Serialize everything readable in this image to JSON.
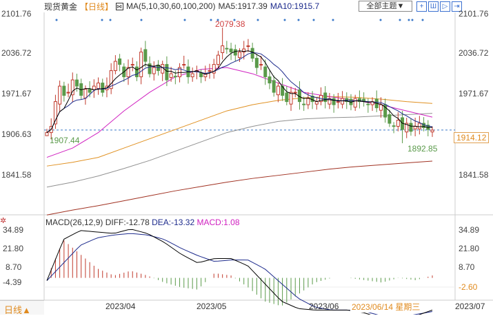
{
  "header": {
    "symbol": "现货黄金",
    "period": "【日线】",
    "ma_label": "MA(5,10,30,60,100,200)",
    "ma5": "MA5:1917.39",
    "ma10": "MA10:1915.7",
    "theme_button": "全部主题▼"
  },
  "tools": [
    "+",
    "Ш",
    "▷",
    "⇥"
  ],
  "price_axis": [
    "2101.76",
    "2036.72",
    "1971.67",
    "1906.63",
    "1841.58"
  ],
  "annotations": {
    "high": "2079.38",
    "low_left": "1907.44",
    "low_right": "1892.85",
    "current": "1914.12"
  },
  "macd": {
    "label": "MACD(26,12,9)",
    "diff": "DIFF:-12.78",
    "dea": "DEA:-13.32",
    "macd": "MACD:1.08",
    "axis": [
      "34.89",
      "21.80",
      "8.70",
      "-4.39"
    ],
    "cursor_value": "-2.60"
  },
  "dates": [
    "2023/04",
    "2023/05",
    "2023/06",
    "2023/07"
  ],
  "tooltip_date": "2023/06/14 星期三",
  "period_button": "日线▲",
  "colors": {
    "up": "#c0392b",
    "down": "#5a9a4a",
    "ma5": "#000000",
    "ma10": "#1c2a8c",
    "ma30": "#d020c0",
    "ma60": "#e09020",
    "ma100": "#909090",
    "ma200": "#a03020"
  },
  "chart_data": {
    "type": "candlestick",
    "ylim": [
      1776,
      2105
    ],
    "closes": [
      1910,
      1920,
      1960,
      1985,
      1970,
      1975,
      1995,
      1985,
      1970,
      1980,
      1975,
      1985,
      1990,
      1975,
      1985,
      2010,
      2025,
      2020,
      2000,
      2015,
      2020,
      2000,
      2040,
      2025,
      2005,
      2015,
      2010,
      2020,
      1995,
      2005,
      2000,
      2015,
      2020,
      2000,
      2005,
      2010,
      2000,
      2005,
      2010,
      2020,
      2035,
      2050,
      2045,
      2040,
      2035,
      2040,
      2045,
      2050,
      2030,
      2015,
      2020,
      2000,
      1990,
      1975,
      1985,
      1970,
      1960,
      1975,
      1975,
      1960,
      1955,
      1965,
      1960,
      1960,
      1970,
      1960,
      1965,
      1955,
      1960,
      1965,
      1960,
      1955,
      1965,
      1960,
      1960,
      1955,
      1960,
      1950,
      1955,
      1935,
      1925,
      1920,
      1930,
      1915,
      1925,
      1912,
      1920,
      1925,
      1918,
      1915,
      1914
    ],
    "ma30": [
      1870,
      1885,
      1910,
      1945,
      1975,
      2000,
      2012,
      2015,
      2005,
      1990,
      1975,
      1968,
      1962,
      1955,
      1945,
      1935
    ],
    "ma60": [
      1856,
      1862,
      1870,
      1885,
      1900,
      1915,
      1930,
      1945,
      1955,
      1962,
      1966,
      1968,
      1967,
      1964,
      1960,
      1957
    ],
    "ma100": [
      1822,
      1830,
      1840,
      1852,
      1865,
      1880,
      1895,
      1910,
      1920,
      1928,
      1932,
      1934,
      1935,
      1937,
      1939,
      1941
    ],
    "ma200": [
      1777,
      1785,
      1792,
      1800,
      1808,
      1816,
      1823,
      1830,
      1836,
      1841,
      1846,
      1851,
      1855,
      1858,
      1861,
      1864
    ],
    "macd_diff": [
      0,
      28,
      34,
      33,
      32,
      35,
      32,
      26,
      18,
      12,
      15,
      15,
      10,
      -2,
      -14,
      -19,
      -20,
      -20,
      -20,
      -22,
      -26,
      -25,
      -24,
      -20
    ],
    "macd_dea": [
      0,
      12,
      24,
      29,
      31,
      32,
      31,
      28,
      22,
      17,
      13,
      14,
      14,
      8,
      -2,
      -12,
      -18,
      -20,
      -20,
      -21,
      -24,
      -25,
      -23,
      -21
    ],
    "macd_ylim": [
      -24,
      37
    ]
  }
}
